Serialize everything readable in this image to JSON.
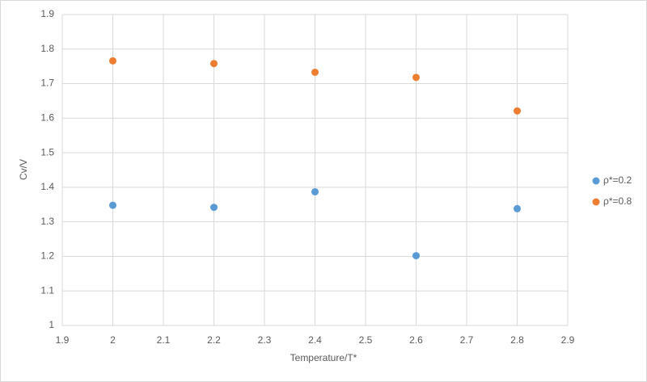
{
  "chart_data": {
    "type": "scatter",
    "x_label": "Temperature/T*",
    "y_label": "Cv/V",
    "series": [
      {
        "name": "ρ*=0.2",
        "color": "#5b9bd5",
        "x": [
          2,
          2.2,
          2.4,
          2.6,
          2.8
        ],
        "values": [
          1.348,
          1.342,
          1.387,
          1.202,
          1.338
        ]
      },
      {
        "name": "ρ*=0.8",
        "color": "#ed7d31",
        "x": [
          2,
          2.2,
          2.4,
          2.6,
          2.8
        ],
        "values": [
          1.766,
          1.758,
          1.733,
          1.718,
          1.621
        ]
      }
    ],
    "xlim": [
      1.9,
      2.9
    ],
    "xticks": [
      1.9,
      2,
      2.1,
      2.2,
      2.3,
      2.4,
      2.5,
      2.6,
      2.7,
      2.8,
      2.9
    ],
    "ylim": [
      1,
      1.9
    ],
    "yticks": [
      1,
      1.1,
      1.2,
      1.3,
      1.4,
      1.5,
      1.6,
      1.7,
      1.8,
      1.9
    ],
    "grid": true,
    "legend": "right"
  }
}
